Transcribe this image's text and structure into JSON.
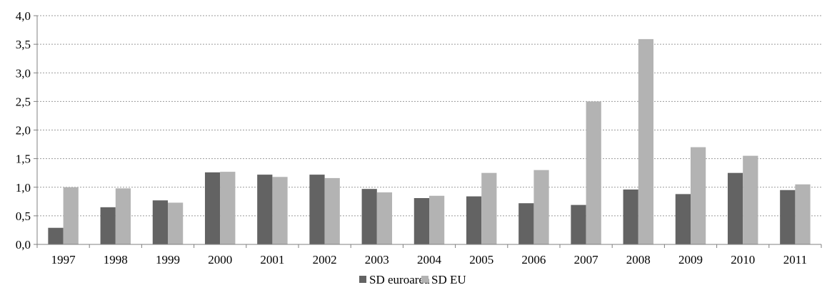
{
  "chart_data": {
    "type": "bar",
    "categories": [
      "1997",
      "1998",
      "1999",
      "2000",
      "2001",
      "2002",
      "2003",
      "2004",
      "2005",
      "2006",
      "2007",
      "2008",
      "2009",
      "2010",
      "2011"
    ],
    "series": [
      {
        "name": "SD euroarea",
        "color": "#636363",
        "values": [
          0.29,
          0.65,
          0.77,
          1.26,
          1.22,
          1.22,
          0.97,
          0.81,
          0.84,
          0.72,
          0.69,
          0.96,
          0.88,
          1.25,
          0.95
        ]
      },
      {
        "name": "SD EU",
        "color": "#b3b3b3",
        "values": [
          1.0,
          0.98,
          0.73,
          1.27,
          1.18,
          1.16,
          0.91,
          0.85,
          1.25,
          1.3,
          2.5,
          3.59,
          1.7,
          1.55,
          1.05
        ]
      }
    ],
    "y_ticks": [
      "0,0",
      "0,5",
      "1,0",
      "1,5",
      "2,0",
      "2,5",
      "3,0",
      "3,5",
      "4,0"
    ],
    "ylim": [
      0,
      4.0
    ],
    "grid": true,
    "legend_position": "bottom-center"
  }
}
